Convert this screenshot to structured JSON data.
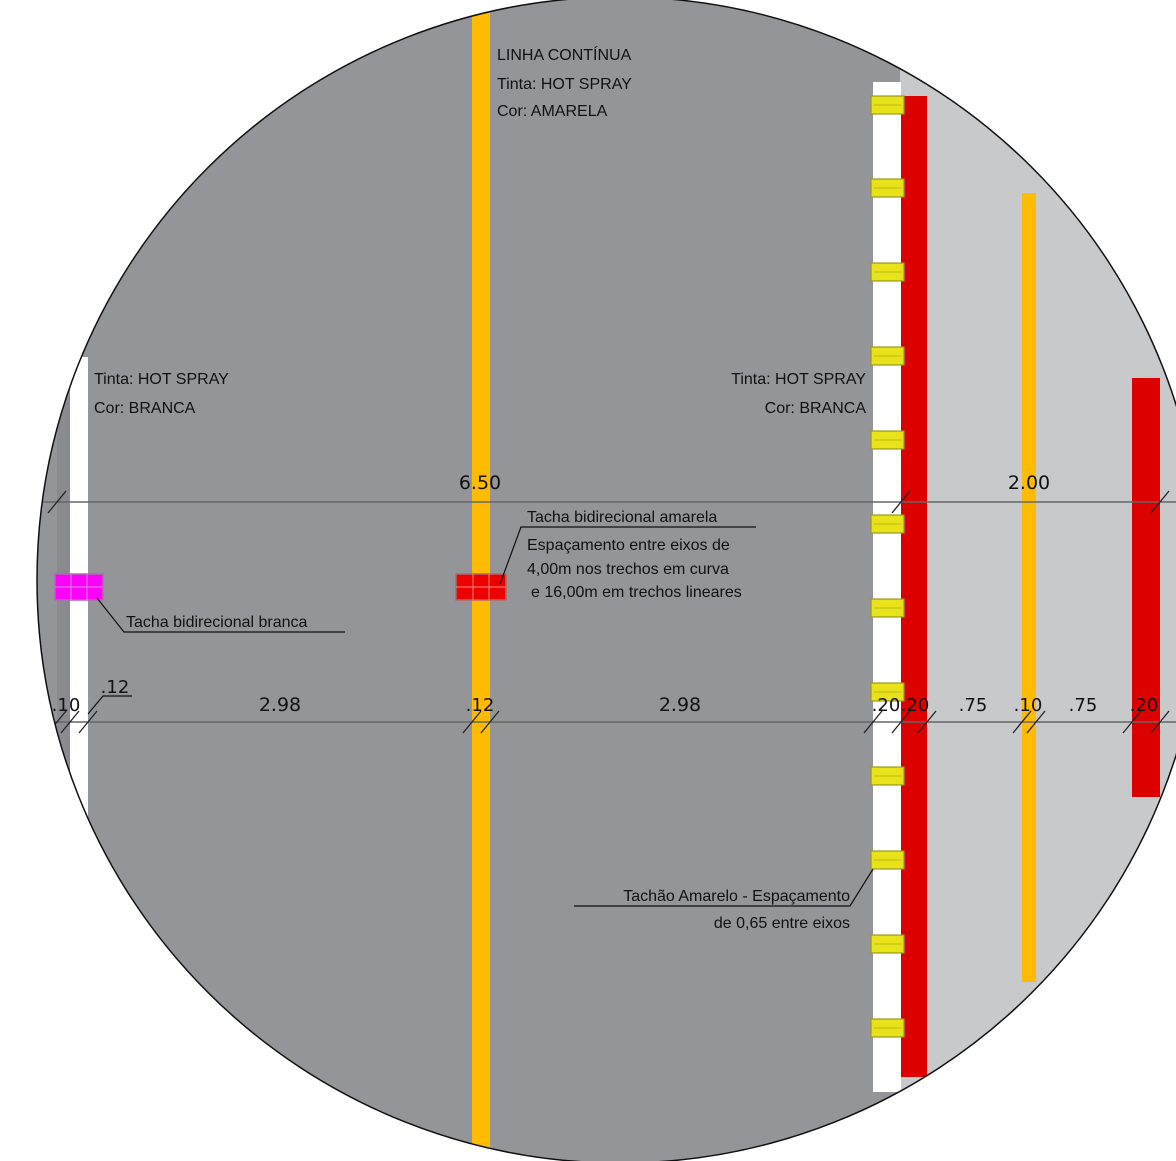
{
  "colors": {
    "asphalt": "#949598",
    "shoulder": "#c8c9cb",
    "white_line": "#ffffff",
    "yellow_line": "#ffbb00",
    "red_line": "#dd0000",
    "stud_yellow": "#e8e21a",
    "stud_magenta": "#ff00ff",
    "stud_red": "#ee0000",
    "dim_line": "#666666"
  },
  "labels": {
    "center_line": [
      "LINHA CONTÍNUA",
      "Tinta: HOT SPRAY",
      "Cor: AMARELA"
    ],
    "left_edge_line": [
      "Tinta: HOT SPRAY",
      "Cor: BRANCA"
    ],
    "right_edge_line": [
      "Tinta: HOT SPRAY",
      "Cor: BRANCA"
    ],
    "white_stud": "Tacha bidirecional branca",
    "yellow_stud": [
      "Tacha bidirecional amarela",
      "Espaçamento entre eixos de",
      "4,00m nos trechos em curva",
      "e 16,00m em trechos lineares"
    ],
    "tachao": [
      "Tachão Amarelo - Espaçamento",
      "de 0,65 entre eixos"
    ]
  },
  "dimensions": {
    "top": [
      "6.50",
      "2.00"
    ],
    "bottom": [
      ".10",
      ".12",
      "2.98",
      ".12",
      "2.98",
      ".20",
      ".20",
      ".75",
      ".10",
      ".75",
      ".20"
    ]
  }
}
